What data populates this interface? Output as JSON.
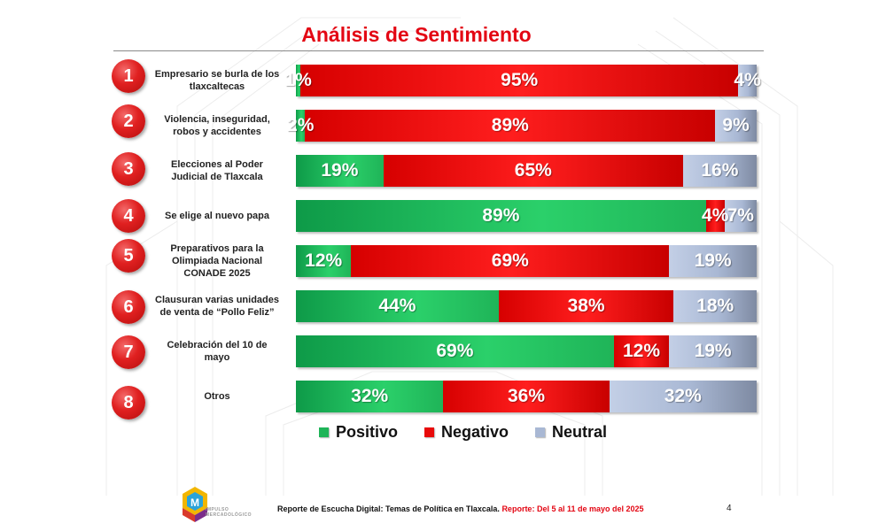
{
  "title": "Análisis de Sentimiento",
  "chart_data": {
    "type": "bar",
    "stacked": "100%",
    "orientation": "horizontal",
    "title": "Análisis de Sentimiento",
    "categories": [
      "Empresario se burla de los tlaxcaltecas",
      "Violencia, inseguridad, robos y accidentes",
      "Elecciones al Poder Judicial de Tlaxcala",
      "Se elige al nuevo papa",
      "Preparativos para la Olimpiada Nacional CONADE 2025",
      "Clausuran varias unidades de venta de “Pollo Feliz”",
      "Celebración del 10 de mayo",
      "Otros"
    ],
    "series": [
      {
        "name": "Positivo",
        "color": "#1fb458",
        "values": [
          1,
          2,
          19,
          89,
          12,
          44,
          69,
          32
        ]
      },
      {
        "name": "Negativo",
        "color": "#e80a0a",
        "values": [
          95,
          89,
          65,
          4,
          69,
          38,
          12,
          36
        ]
      },
      {
        "name": "Neutral",
        "color": "#a9b8d4",
        "values": [
          4,
          9,
          16,
          7,
          19,
          18,
          19,
          32
        ]
      }
    ],
    "legend_position": "bottom",
    "grid": false
  },
  "rows": [
    {
      "number": "1",
      "label_lines": [
        "Empresario se burla de los",
        "tlaxcaltecas"
      ]
    },
    {
      "number": "2",
      "label_lines": [
        "Violencia, inseguridad,",
        "robos y accidentes"
      ]
    },
    {
      "number": "3",
      "label_lines": [
        "Elecciones al Poder",
        "Judicial de Tlaxcala"
      ]
    },
    {
      "number": "4",
      "label_lines": [
        "Se elige al nuevo papa"
      ]
    },
    {
      "number": "5",
      "label_lines": [
        "Preparativos para la",
        "Olimpiada Nacional",
        "CONADE 2025"
      ]
    },
    {
      "number": "6",
      "label_lines": [
        "Clausuran varias unidades",
        "de venta de “Pollo Feliz”"
      ]
    },
    {
      "number": "7",
      "label_lines": [
        "Celebración del 10 de",
        "mayo"
      ]
    },
    {
      "number": "8",
      "label_lines": [
        "Otros"
      ]
    }
  ],
  "legend": {
    "positive": "Positivo",
    "negative": "Negativo",
    "neutral": "Neutral"
  },
  "footer": {
    "report_text": "Reporte de Escucha Digital: Temas de Política en Tlaxcala.",
    "date_text": "Reporte: Del  5 al 11 de mayo del 2025",
    "page_number": "4"
  },
  "logo": {
    "line1": "IMPULSO",
    "line2": "MERCADOLÓGICO"
  }
}
